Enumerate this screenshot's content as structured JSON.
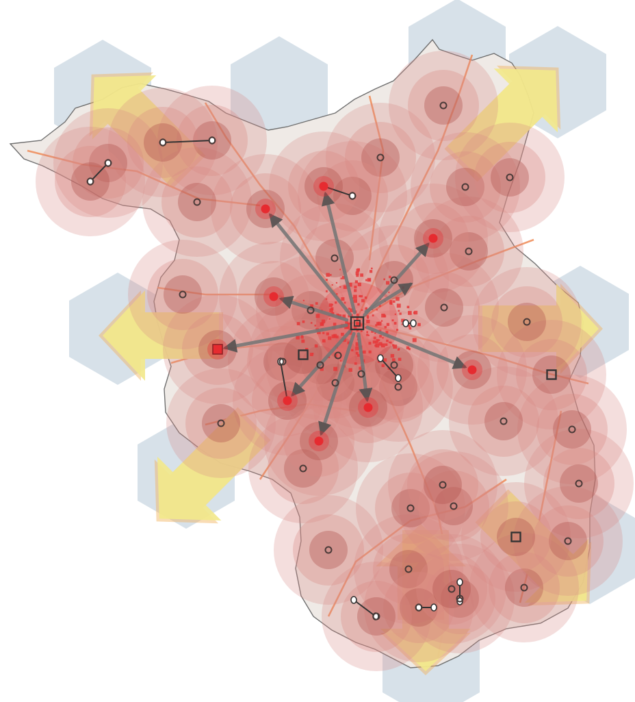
{
  "map": {
    "colors": {
      "background": "#ffffff",
      "region_fill": "#efeae6",
      "region_outline": "#6f6f6f",
      "hexagon_zone": "#d5dfe8",
      "axis_arrow": "#f2e88c",
      "axis_arrow_glow": "#f2b25a",
      "influence_halo": "#d98a84",
      "influence_core": "#b4544f",
      "road": "#ef8a55",
      "hub_spread": "#e5383a",
      "link_arrow": "#767676",
      "center_node": "#e62b30",
      "node_outline": "#4a3a38"
    },
    "symbols": {
      "center_node": "red-dot",
      "town_node": "small-circle",
      "regional_node": "square",
      "node_pair": "dumbbell-link",
      "outward_axis": "block-arrow",
      "external_zone": "hexagon"
    },
    "outward_axes": 8,
    "radial_links": 10,
    "center_nodes": 10,
    "regional_nodes": 4,
    "town_nodes": 40,
    "node_pairs": 8
  }
}
